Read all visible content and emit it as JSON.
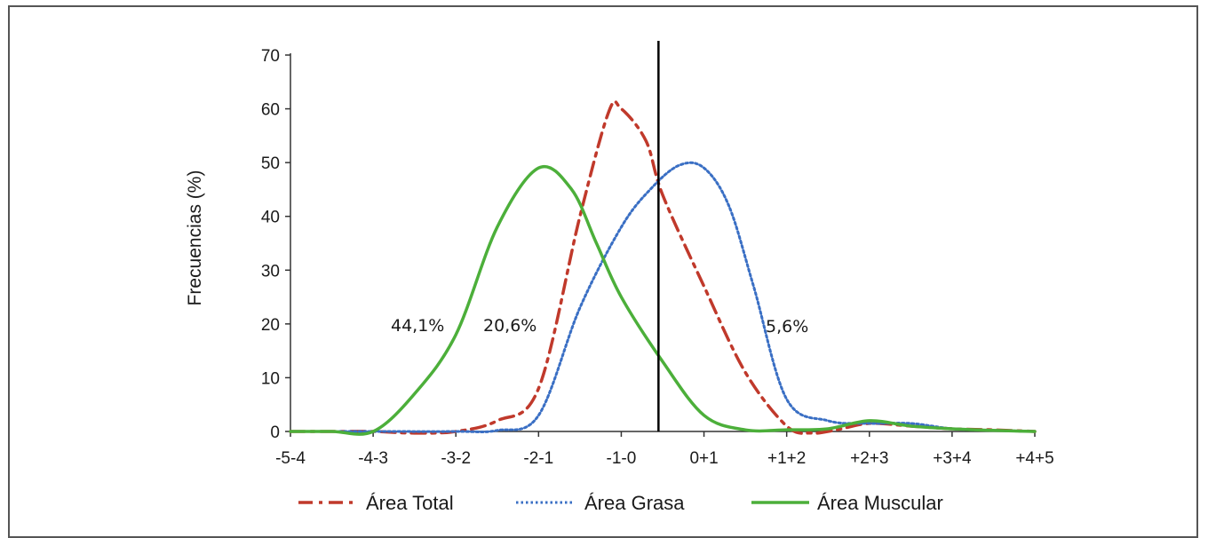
{
  "chart_data": {
    "type": "line",
    "title": "",
    "xlabel": "",
    "ylabel": "Frecuencias (%)",
    "ylim": [
      0,
      70
    ],
    "yticks": [
      0,
      10,
      20,
      30,
      40,
      50,
      60,
      70
    ],
    "categories": [
      "-5-4",
      "-4-3",
      "-3-2",
      "-2-1",
      "-1-0",
      "0+1",
      "+1+2",
      "+2+3",
      "+3+4",
      "+4+5"
    ],
    "legend_position": "bottom",
    "grid": false,
    "series": [
      {
        "name": "Área Total",
        "color": "#c0392b",
        "style": "dash-dot",
        "points": [
          [
            0,
            0
          ],
          [
            0.5,
            0
          ],
          [
            1,
            0
          ],
          [
            1.5,
            -0.3
          ],
          [
            2,
            0
          ],
          [
            2.5,
            2
          ],
          [
            3,
            8
          ],
          [
            3.5,
            40
          ],
          [
            3.85,
            59.5
          ],
          [
            4,
            60
          ],
          [
            4.3,
            54
          ],
          [
            4.5,
            44
          ],
          [
            5,
            27
          ],
          [
            5.5,
            11
          ],
          [
            6,
            1
          ],
          [
            6.3,
            -0.3
          ],
          [
            6.6,
            0.3
          ],
          [
            7,
            1.5
          ],
          [
            7.5,
            1
          ],
          [
            8,
            0.5
          ],
          [
            8.5,
            0.3
          ],
          [
            9,
            0
          ]
        ]
      },
      {
        "name": "Área Grasa",
        "color": "#3a6fc4",
        "style": "dotted",
        "points": [
          [
            0,
            0
          ],
          [
            1,
            0
          ],
          [
            2,
            0
          ],
          [
            2.5,
            0.2
          ],
          [
            3,
            3
          ],
          [
            3.5,
            23
          ],
          [
            4,
            38
          ],
          [
            4.35,
            45
          ],
          [
            4.7,
            49.5
          ],
          [
            5,
            49
          ],
          [
            5.3,
            42
          ],
          [
            5.6,
            27
          ],
          [
            6,
            6
          ],
          [
            6.5,
            2
          ],
          [
            7,
            1.5
          ],
          [
            7.5,
            1.5
          ],
          [
            8,
            0.5
          ],
          [
            8.5,
            0.2
          ],
          [
            9,
            0
          ]
        ]
      },
      {
        "name": "Área Muscular",
        "color": "#4caf3a",
        "style": "solid",
        "points": [
          [
            0,
            0
          ],
          [
            0.5,
            0
          ],
          [
            1,
            0
          ],
          [
            1.5,
            7
          ],
          [
            2,
            18
          ],
          [
            2.5,
            38
          ],
          [
            3,
            49
          ],
          [
            3.4,
            45
          ],
          [
            3.7,
            35
          ],
          [
            4,
            25
          ],
          [
            4.5,
            13
          ],
          [
            5,
            3
          ],
          [
            5.5,
            0.3
          ],
          [
            6,
            0.3
          ],
          [
            6.5,
            0.5
          ],
          [
            7,
            2
          ],
          [
            7.5,
            1
          ],
          [
            8,
            0.5
          ],
          [
            8.5,
            0.2
          ],
          [
            9,
            0
          ]
        ]
      }
    ],
    "vertical_line_x": 4.45,
    "annotations": [
      "44,1%",
      "20,6%",
      "5,6%"
    ]
  }
}
